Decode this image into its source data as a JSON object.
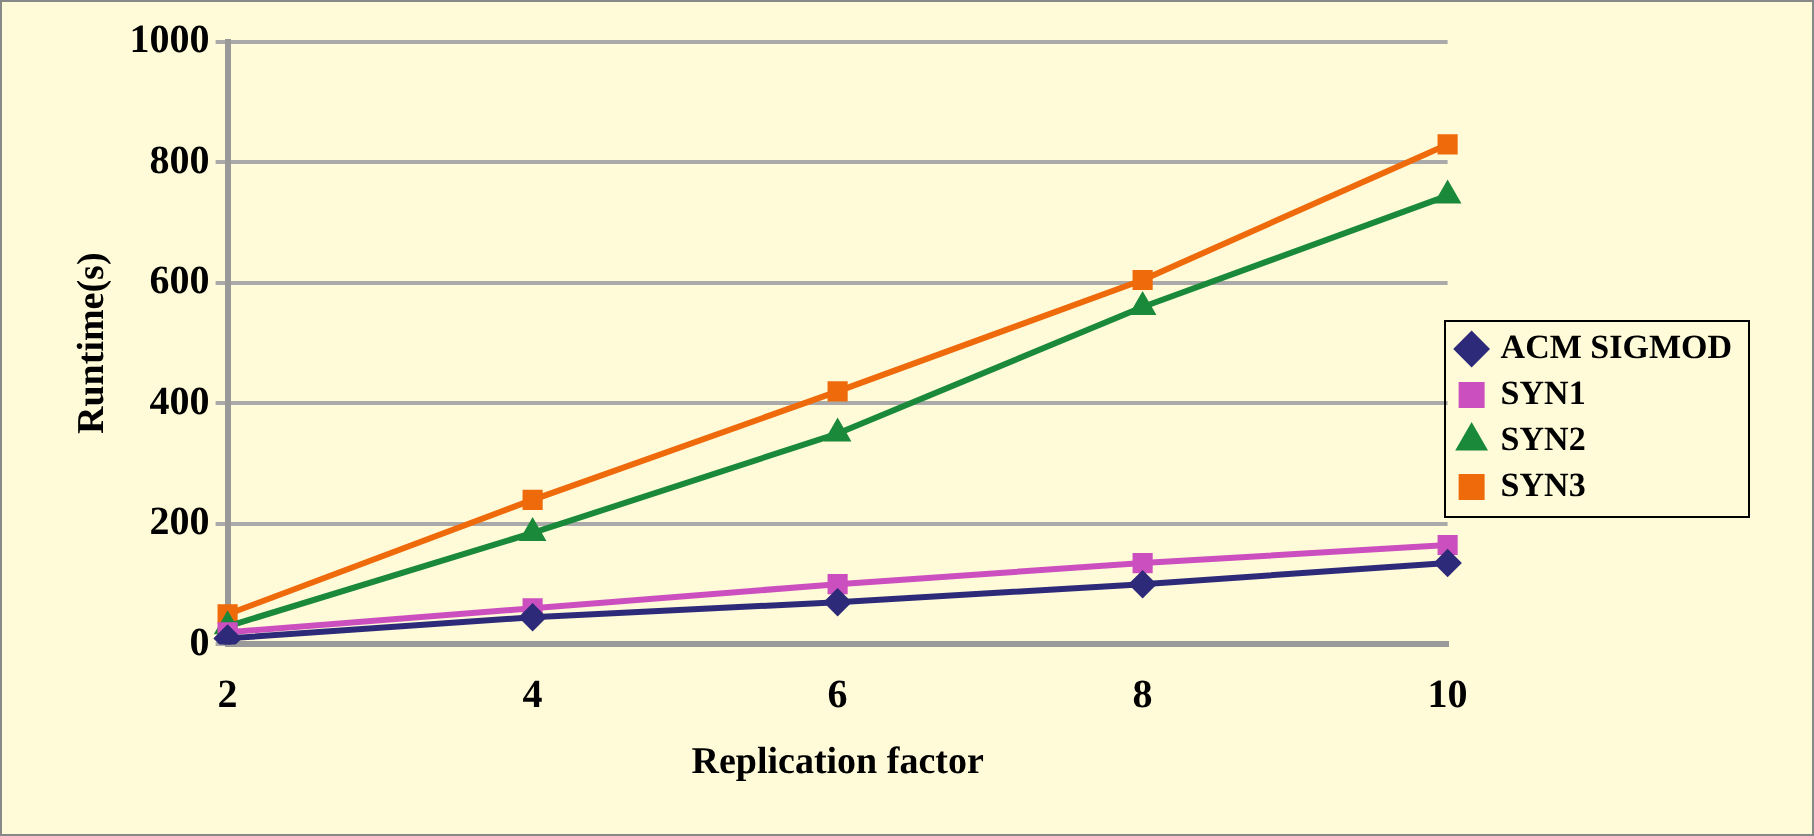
{
  "chart_data": {
    "type": "line",
    "xlabel": "Replication factor",
    "ylabel": "Runtime(s)",
    "categories": [
      "2",
      "4",
      "6",
      "8",
      "10"
    ],
    "series": [
      {
        "name": "ACM SIGMOD",
        "color": "#2e2a7a",
        "marker": "diamond",
        "values": [
          10,
          45,
          70,
          100,
          135
        ]
      },
      {
        "name": "SYN1",
        "color": "#cc4fbf",
        "marker": "square",
        "values": [
          20,
          60,
          100,
          135,
          165
        ]
      },
      {
        "name": "SYN2",
        "color": "#1a8a3a",
        "marker": "triangle",
        "values": [
          30,
          185,
          350,
          560,
          745
        ]
      },
      {
        "name": "SYN3",
        "color": "#ee6a0a",
        "marker": "square",
        "values": [
          50,
          240,
          420,
          605,
          830
        ]
      }
    ],
    "ylim": [
      0,
      1000
    ],
    "yticks": [
      0,
      200,
      400,
      600,
      800,
      1000
    ],
    "grid": "y",
    "legend": "right",
    "line_style": "solid"
  }
}
